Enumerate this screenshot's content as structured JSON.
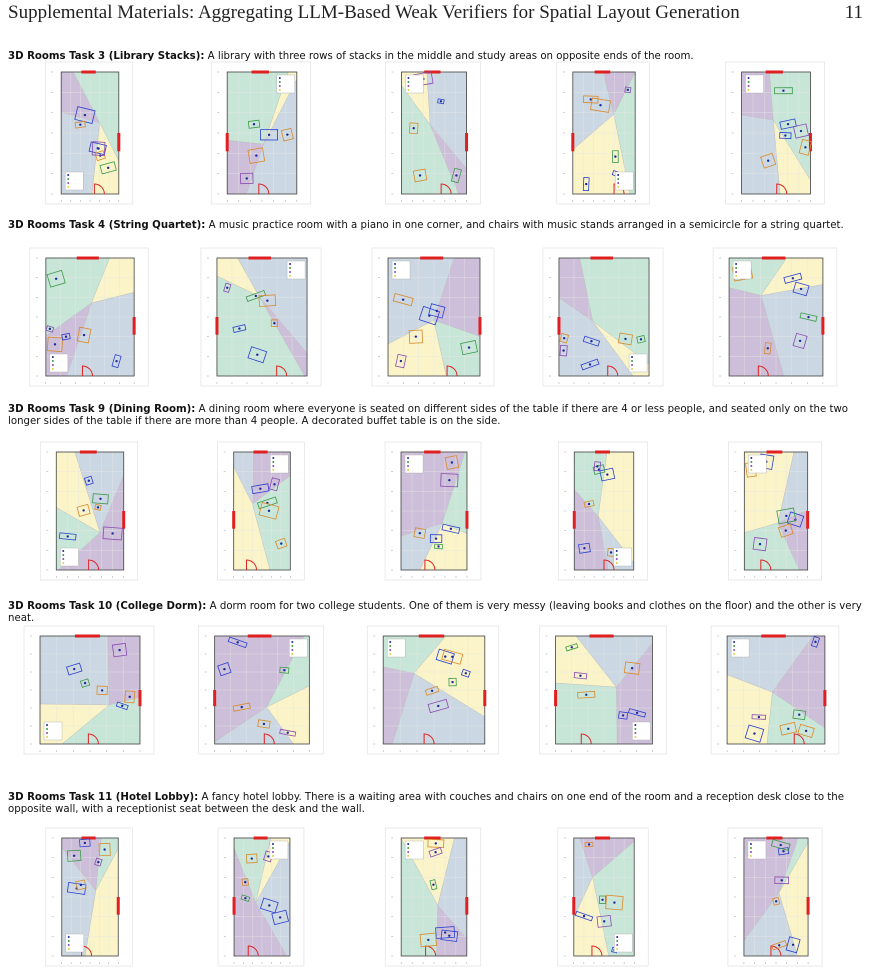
{
  "header": {
    "title": "Supplemental Materials: Aggregating LLM-Based Weak Verifiers for Spatial Layout Generation",
    "page": "11"
  },
  "sections": [
    {
      "label": "3D Rooms Task 3 (Library Stacks):",
      "text": "A library with three rows of stacks in the middle and study areas on opposite ends of the room."
    },
    {
      "label": "3D Rooms Task 4 (String Quartet):",
      "text": "A music practice room with a piano in one corner, and chairs with music stands arranged in a semicircle for a string quartet."
    },
    {
      "label": "3D Rooms Task 9 (Dining Room):",
      "text": "A dining room where everyone is seated on different sides of the table if there are 4 or less people, and seated only on the two longer sides of the table if there are more than 4 people. A decorated buffet table is on the side."
    },
    {
      "label": "3D Rooms Task 10 (College Dorm):",
      "text": "A dorm room for two college students. One of them is very messy (leaving books and clothes on the floor) and the other is very neat."
    },
    {
      "label": "3D Rooms Task 11 (Hotel Lobby):",
      "text": "A fancy hotel lobby. There is a waiting area with couches and chairs on one end of the room and a reception desk close to the opposite wall, with a receptionist seat between the desk and the wall."
    }
  ]
}
